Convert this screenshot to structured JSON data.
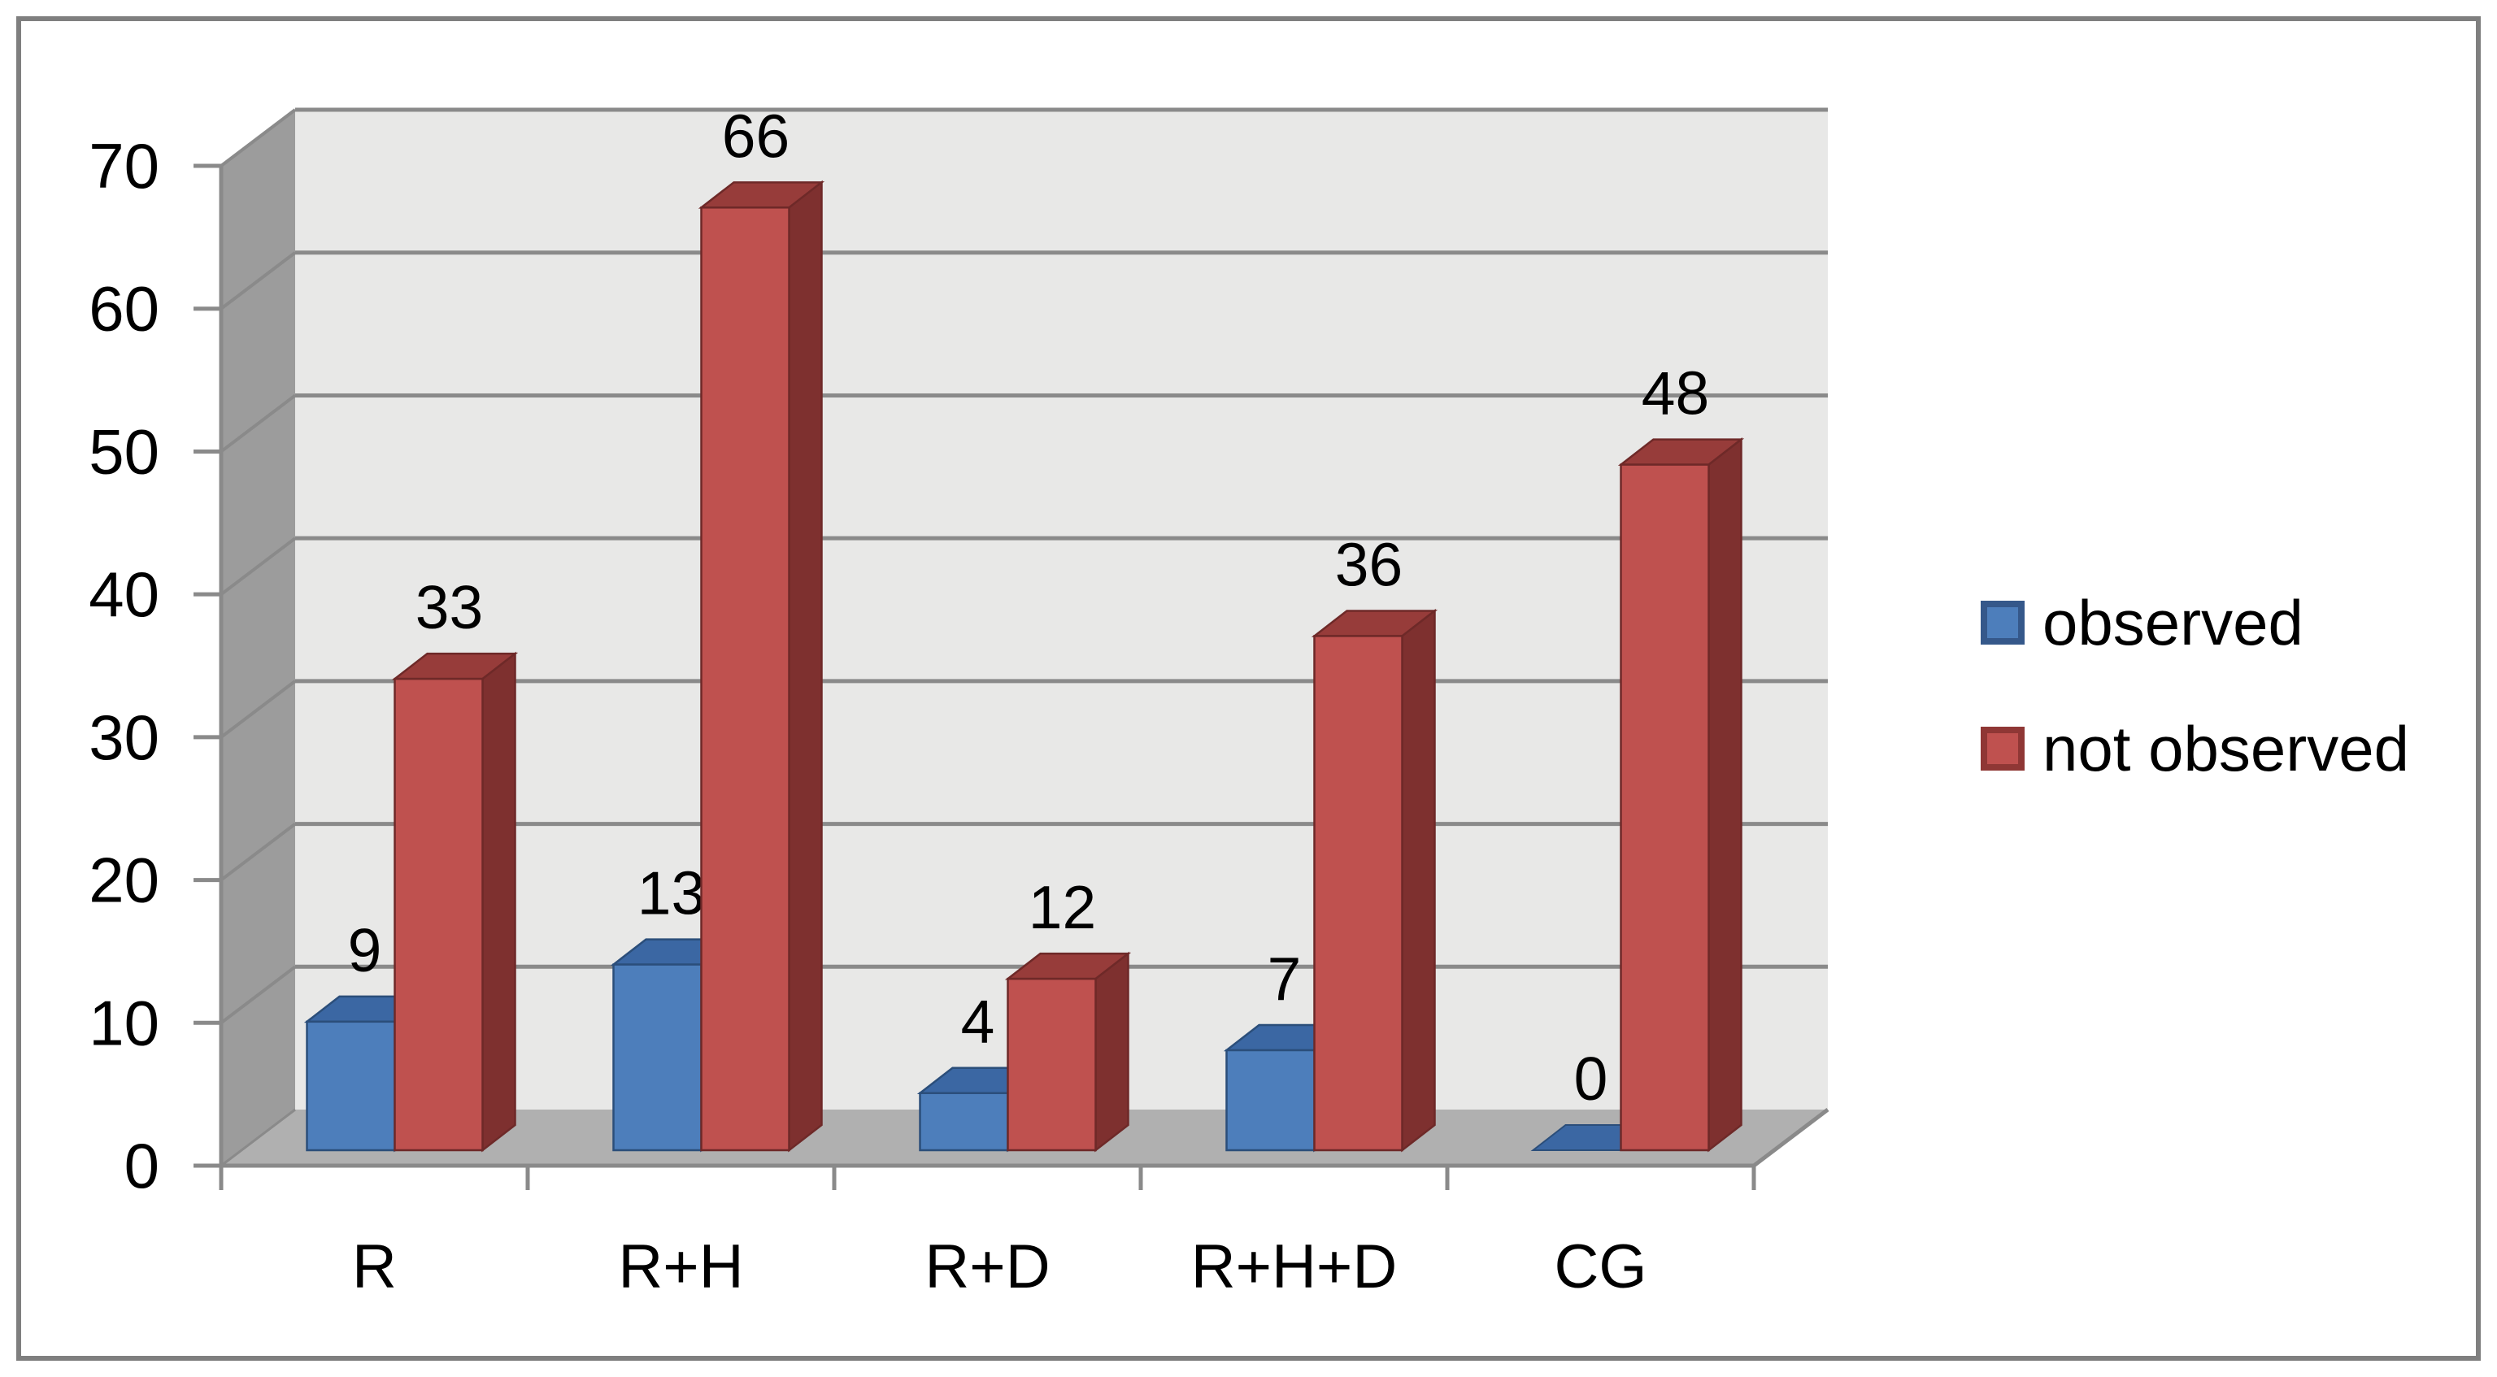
{
  "chart_data": {
    "type": "bar",
    "variant": "3d-clustered-column",
    "title": "",
    "xlabel": "",
    "ylabel": "",
    "categories": [
      "R",
      "R+H",
      "R+D",
      "R+H+D",
      "CG"
    ],
    "series": [
      {
        "name": "observed",
        "values": [
          9,
          13,
          4,
          7,
          0
        ],
        "color": "#4D7EBB",
        "top_color": "#3B67A3",
        "side_color": "#2E527E",
        "edge_color": "#2B4E7A",
        "swatch_border": "#35588A"
      },
      {
        "name": "not observed",
        "values": [
          33,
          66,
          12,
          36,
          48
        ],
        "color": "#BF514F",
        "top_color": "#973C3A",
        "side_color": "#7E302F",
        "edge_color": "#6E2928",
        "swatch_border": "#8F3735"
      }
    ],
    "ylim": [
      0,
      70
    ],
    "yticks": [
      0,
      10,
      20,
      30,
      40,
      50,
      60,
      70
    ],
    "grid": true,
    "legend_position": "right",
    "data_labels": true,
    "style": {
      "background": "#FFFFFF",
      "page_border": "#7F7F7F",
      "back_wall": "#E8E8E7",
      "side_wall": "#9C9C9C",
      "floor": "#B0B0B0",
      "grid_color": "#8A8A8A",
      "axis_color": "#8A8A8A",
      "text_color": "#000000"
    }
  }
}
